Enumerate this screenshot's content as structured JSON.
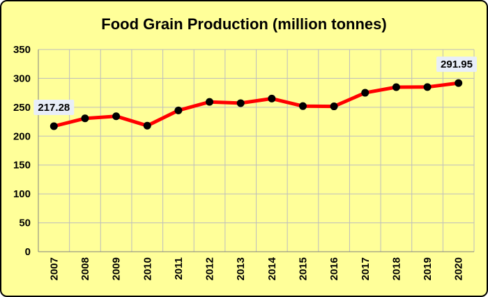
{
  "chart_data": {
    "type": "line",
    "title": "Food Grain Production (million tonnes)",
    "xlabel": "",
    "ylabel": "",
    "categories": [
      "2007",
      "2008",
      "2009",
      "2010",
      "2011",
      "2012",
      "2013",
      "2014",
      "2015",
      "2016",
      "2017",
      "2018",
      "2019",
      "2020"
    ],
    "series": [
      {
        "name": "Food Grain Production",
        "values": [
          217.28,
          230.78,
          234.47,
          218.11,
          244.49,
          259.29,
          257.13,
          265.04,
          252.02,
          251.57,
          275.11,
          284.83,
          285.01,
          291.95
        ]
      }
    ],
    "ylim": [
      0,
      350
    ],
    "yticks": [
      0,
      50,
      100,
      150,
      200,
      250,
      300,
      350
    ],
    "grid": true,
    "legend": "none",
    "data_labels": [
      {
        "index": 0,
        "text": "217.28"
      },
      {
        "index": 13,
        "text": "291.95"
      }
    ],
    "colors": {
      "background": "#FFFF99",
      "line": "#FF0000",
      "marker": "#000000",
      "grid": "#BDBDBD",
      "label_box": "#E8EEF8"
    }
  }
}
